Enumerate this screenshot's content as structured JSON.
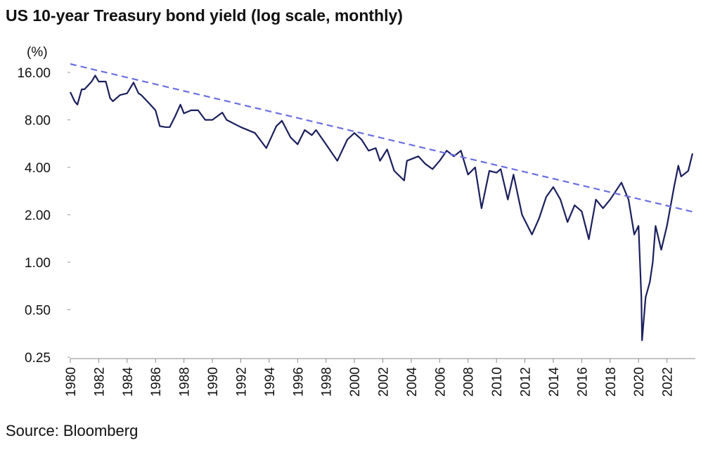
{
  "chart_data": {
    "type": "line",
    "title": "US 10-year Treasury bond yield (log scale, monthly)",
    "ylabel": "(%)",
    "source": "Source: Bloomberg",
    "yscale": "log",
    "xlim": [
      1980,
      2024
    ],
    "ylim": [
      0.25,
      20
    ],
    "xticks": [
      1980,
      1982,
      1984,
      1986,
      1988,
      1990,
      1992,
      1994,
      1996,
      1998,
      2000,
      2002,
      2004,
      2006,
      2008,
      2010,
      2012,
      2014,
      2016,
      2018,
      2020,
      2022
    ],
    "yticks": [
      {
        "value": 0.25,
        "label": "0.25"
      },
      {
        "value": 0.5,
        "label": "0.50"
      },
      {
        "value": 1,
        "label": "1.00"
      },
      {
        "value": 2,
        "label": "2.00"
      },
      {
        "value": 4,
        "label": "4.00"
      },
      {
        "value": 8,
        "label": "8.00"
      },
      {
        "value": 16,
        "label": "16.00"
      }
    ],
    "series": [
      {
        "color": "#1b1f5c",
        "x": [
          1980.0,
          1980.3,
          1980.5,
          1980.8,
          1981.0,
          1981.5,
          1981.75,
          1982.0,
          1982.5,
          1982.8,
          1983.0,
          1983.5,
          1984.0,
          1984.45,
          1984.8,
          1985.0,
          1985.5,
          1986.0,
          1986.3,
          1986.7,
          1987.0,
          1987.4,
          1987.75,
          1988.0,
          1988.5,
          1989.0,
          1989.5,
          1990.0,
          1990.7,
          1991.0,
          1992.0,
          1993.0,
          1993.8,
          1994.5,
          1994.9,
          1995.5,
          1996.0,
          1996.5,
          1997.0,
          1997.3,
          1998.0,
          1998.8,
          1999.5,
          2000.0,
          2000.5,
          2001.0,
          2001.5,
          2001.8,
          2002.3,
          2002.8,
          2003.5,
          2003.7,
          2004.5,
          2005.0,
          2005.5,
          2006.0,
          2006.5,
          2007.0,
          2007.5,
          2008.0,
          2008.5,
          2008.95,
          2009.5,
          2010.0,
          2010.3,
          2010.8,
          2011.2,
          2011.8,
          2012.5,
          2013.0,
          2013.5,
          2014.0,
          2014.5,
          2015.0,
          2015.5,
          2016.0,
          2016.5,
          2017.0,
          2017.5,
          2018.0,
          2018.8,
          2019.3,
          2019.7,
          2020.0,
          2020.2,
          2020.25,
          2020.5,
          2020.8,
          2021.0,
          2021.2,
          2021.6,
          2022.0,
          2022.5,
          2022.8,
          2023.0,
          2023.5,
          2023.8
        ],
        "values": [
          12,
          10.5,
          10.0,
          12.5,
          12.5,
          14,
          15.3,
          14,
          14,
          11,
          10.5,
          11.5,
          11.8,
          13.8,
          11.8,
          11.5,
          10.3,
          9.2,
          7.3,
          7.2,
          7.2,
          8.5,
          10,
          8.8,
          9.2,
          9.2,
          8.0,
          8.0,
          8.9,
          8.0,
          7.2,
          6.6,
          5.3,
          7.3,
          7.9,
          6.2,
          5.6,
          6.9,
          6.4,
          6.9,
          5.6,
          4.4,
          6.0,
          6.6,
          6.0,
          5.1,
          5.3,
          4.4,
          5.2,
          3.8,
          3.3,
          4.4,
          4.7,
          4.2,
          3.9,
          4.4,
          5.1,
          4.7,
          5.1,
          3.6,
          4.0,
          2.2,
          3.8,
          3.7,
          3.9,
          2.5,
          3.6,
          2.0,
          1.5,
          1.9,
          2.6,
          3.0,
          2.5,
          1.8,
          2.3,
          2.1,
          1.4,
          2.5,
          2.2,
          2.5,
          3.2,
          2.5,
          1.5,
          1.7,
          0.6,
          0.32,
          0.6,
          0.75,
          1.0,
          1.7,
          1.2,
          1.7,
          3.0,
          4.1,
          3.5,
          3.8,
          4.9
        ]
      }
    ],
    "trendline": {
      "color": "#6b6fe0",
      "x": [
        1980,
        2024
      ],
      "values": [
        18.1,
        2.07
      ]
    }
  }
}
